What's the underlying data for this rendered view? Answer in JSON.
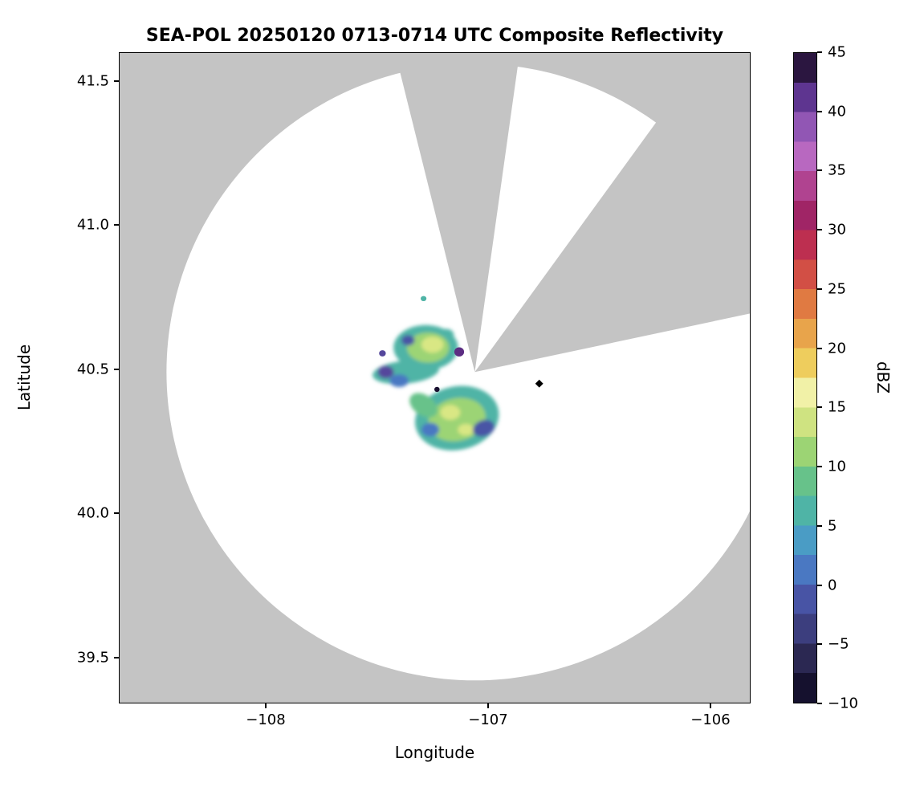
{
  "chart_data": {
    "type": "heatmap",
    "title": "SEA-POL 20250120 0713-0714 UTC Composite Reflectivity",
    "xlabel": "Longitude",
    "ylabel": "Latitude",
    "xlim": [
      -108.66,
      -105.82
    ],
    "ylim": [
      39.34,
      41.6
    ],
    "grid": false,
    "xticks": [
      {
        "value": -108,
        "label": "−108"
      },
      {
        "value": -107,
        "label": "−107"
      },
      {
        "value": -106,
        "label": "−106"
      }
    ],
    "yticks": [
      {
        "value": 41.5,
        "label": "41.5"
      },
      {
        "value": 41.0,
        "label": "41.0"
      },
      {
        "value": 40.5,
        "label": "40.5"
      },
      {
        "value": 40.0,
        "label": "40.0"
      },
      {
        "value": 39.5,
        "label": "39.5"
      }
    ],
    "colorbar": {
      "label": "dBZ",
      "min": -10,
      "max": 45,
      "ticks": [
        {
          "value": 45,
          "label": "45"
        },
        {
          "value": 40,
          "label": "40"
        },
        {
          "value": 35,
          "label": "35"
        },
        {
          "value": 30,
          "label": "30"
        },
        {
          "value": 25,
          "label": "25"
        },
        {
          "value": 20,
          "label": "20"
        },
        {
          "value": 15,
          "label": "15"
        },
        {
          "value": 10,
          "label": "10"
        },
        {
          "value": 5,
          "label": "5"
        },
        {
          "value": 0,
          "label": "0"
        },
        {
          "value": -5,
          "label": "−5"
        },
        {
          "value": -10,
          "label": "−10"
        }
      ],
      "colormap_name": "ChaseSpectral-like",
      "stops": [
        {
          "value": -10,
          "color": "#000004"
        },
        {
          "value": -7.5,
          "color": "#15112e"
        },
        {
          "value": -5,
          "color": "#2b2852"
        },
        {
          "value": -2.5,
          "color": "#3c3e7e"
        },
        {
          "value": 0,
          "color": "#4854a5"
        },
        {
          "value": 2.5,
          "color": "#4a78c2"
        },
        {
          "value": 5,
          "color": "#4a9cc5"
        },
        {
          "value": 7.5,
          "color": "#4fb4a6"
        },
        {
          "value": 10,
          "color": "#67c28a"
        },
        {
          "value": 12.5,
          "color": "#9cd474"
        },
        {
          "value": 15,
          "color": "#cfe381"
        },
        {
          "value": 17.5,
          "color": "#f1f1a7"
        },
        {
          "value": 20,
          "color": "#eecd5d"
        },
        {
          "value": 22.5,
          "color": "#e8a44b"
        },
        {
          "value": 25,
          "color": "#e07a42"
        },
        {
          "value": 27.5,
          "color": "#d24f45"
        },
        {
          "value": 30,
          "color": "#bd2f50"
        },
        {
          "value": 32.5,
          "color": "#a02566"
        },
        {
          "value": 35,
          "color": "#b04390"
        },
        {
          "value": 37.5,
          "color": "#b868c0"
        },
        {
          "value": 40,
          "color": "#9156b4"
        },
        {
          "value": 42.5,
          "color": "#5e3590"
        },
        {
          "value": 45,
          "color": "#2b1640"
        }
      ]
    },
    "radar": {
      "name": "SEA-POL",
      "center_lon": -107.06,
      "center_lat": 40.49,
      "range_deg_lat": 1.07,
      "coverage_color": "#ffffff",
      "no_data_color": "#c4c4c4",
      "blocked_sectors_az_deg": [
        {
          "from": -14,
          "to": 8
        },
        {
          "from": 36,
          "to": 78
        }
      ]
    },
    "echo_regions": [
      {
        "lon": -107.28,
        "lat": 40.575,
        "rx_deg": 0.145,
        "ry_deg": 0.078,
        "dbz": 8,
        "color": "#4fb4a6",
        "rot": 0,
        "soft": true
      },
      {
        "lon": -107.37,
        "lat": 40.49,
        "rx_deg": 0.15,
        "ry_deg": 0.04,
        "dbz": 7,
        "color": "#4fb4a6",
        "rot": -6,
        "soft": true
      },
      {
        "lon": -107.14,
        "lat": 40.33,
        "rx_deg": 0.19,
        "ry_deg": 0.11,
        "dbz": 8,
        "color": "#4fb4a6",
        "rot": -12,
        "soft": true
      },
      {
        "lon": -107.19,
        "lat": 40.62,
        "rx_deg": 0.036,
        "ry_deg": 0.02,
        "dbz": 8,
        "color": "#4fb4a6",
        "rot": 0,
        "soft": true
      },
      {
        "lon": -107.29,
        "lat": 40.745,
        "rx_deg": 0.013,
        "ry_deg": 0.009,
        "dbz": 8,
        "color": "#4fb4a6",
        "rot": 0,
        "soft": false
      },
      {
        "lon": -107.27,
        "lat": 40.575,
        "rx_deg": 0.095,
        "ry_deg": 0.052,
        "dbz": 12,
        "color": "#9cd474",
        "rot": 0,
        "soft": true
      },
      {
        "lon": -107.14,
        "lat": 40.325,
        "rx_deg": 0.13,
        "ry_deg": 0.074,
        "dbz": 12,
        "color": "#9cd474",
        "rot": -12,
        "soft": true
      },
      {
        "lon": -107.29,
        "lat": 40.375,
        "rx_deg": 0.07,
        "ry_deg": 0.035,
        "dbz": 10,
        "color": "#67c28a",
        "rot": 35,
        "soft": true
      },
      {
        "lon": -107.25,
        "lat": 40.585,
        "rx_deg": 0.05,
        "ry_deg": 0.028,
        "dbz": 15,
        "color": "#d9e784",
        "rot": 0,
        "soft": true
      },
      {
        "lon": -107.17,
        "lat": 40.35,
        "rx_deg": 0.045,
        "ry_deg": 0.026,
        "dbz": 15,
        "color": "#d9e784",
        "rot": 0,
        "soft": true
      },
      {
        "lon": -107.1,
        "lat": 40.29,
        "rx_deg": 0.036,
        "ry_deg": 0.02,
        "dbz": 15,
        "color": "#d9e784",
        "rot": 0,
        "soft": true
      },
      {
        "lon": -107.46,
        "lat": 40.49,
        "rx_deg": 0.036,
        "ry_deg": 0.022,
        "dbz": 0,
        "color": "#55479c",
        "rot": 0,
        "soft": true
      },
      {
        "lon": -107.475,
        "lat": 40.555,
        "rx_deg": 0.015,
        "ry_deg": 0.011,
        "dbz": 0,
        "color": "#55479c",
        "rot": 0,
        "soft": false
      },
      {
        "lon": -107.4,
        "lat": 40.46,
        "rx_deg": 0.043,
        "ry_deg": 0.022,
        "dbz": 3,
        "color": "#4a78c2",
        "rot": 0,
        "soft": true
      },
      {
        "lon": -107.36,
        "lat": 40.6,
        "rx_deg": 0.03,
        "ry_deg": 0.018,
        "dbz": 1,
        "color": "#4854a5",
        "rot": 0,
        "soft": true
      },
      {
        "lon": -107.02,
        "lat": 40.295,
        "rx_deg": 0.05,
        "ry_deg": 0.028,
        "dbz": 1,
        "color": "#4854a5",
        "rot": -20,
        "soft": true
      },
      {
        "lon": -107.26,
        "lat": 40.29,
        "rx_deg": 0.04,
        "ry_deg": 0.024,
        "dbz": 3,
        "color": "#4a78c2",
        "rot": 0,
        "soft": true
      },
      {
        "lon": -107.13,
        "lat": 40.56,
        "rx_deg": 0.022,
        "ry_deg": 0.016,
        "dbz": 40,
        "color": "#5c2d82",
        "rot": 0,
        "soft": false
      },
      {
        "lon": -107.23,
        "lat": 40.43,
        "rx_deg": 0.012,
        "ry_deg": 0.009,
        "dbz": 44,
        "color": "#1a1030",
        "rot": 0,
        "soft": false
      }
    ],
    "marker": {
      "lon": -106.77,
      "lat": 40.45,
      "shape": "diamond",
      "color": "#000000"
    }
  }
}
